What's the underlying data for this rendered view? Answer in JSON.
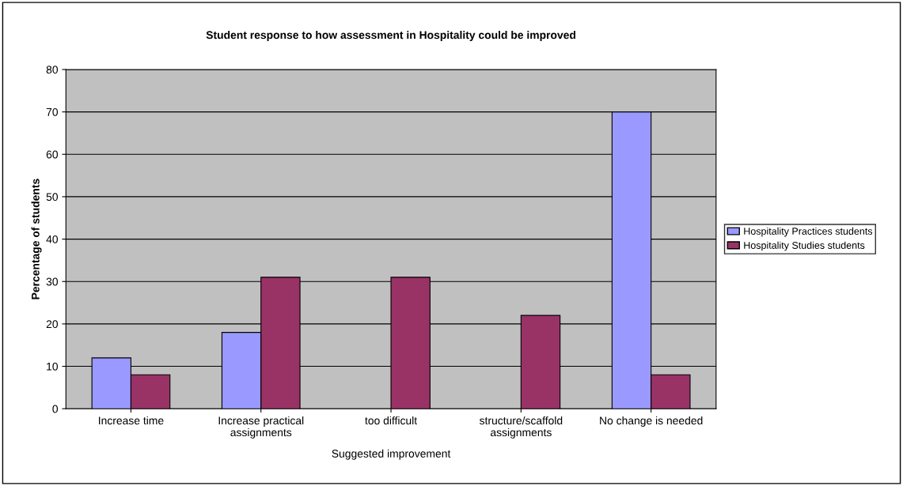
{
  "chart_data": {
    "type": "bar",
    "title": "Student response to how assessment in Hospitality could be improved",
    "xlabel": "Suggested improvement",
    "ylabel": "Percentage of students",
    "categories": [
      "Increase time",
      "Increase practical\nassignments",
      "too difficult",
      "structure/scaffold\nassignments",
      "No change is needed"
    ],
    "series": [
      {
        "name": "Hospitality Practices students",
        "color": "#9999ff",
        "values": [
          12,
          18,
          null,
          null,
          70
        ]
      },
      {
        "name": "Hospitality Studies students",
        "color": "#993366",
        "values": [
          8,
          31,
          31,
          22,
          8
        ]
      }
    ],
    "ylim": [
      0,
      80
    ],
    "yticks": [
      0,
      10,
      20,
      30,
      40,
      50,
      60,
      70,
      80
    ],
    "grid": "y",
    "legend": "right"
  }
}
